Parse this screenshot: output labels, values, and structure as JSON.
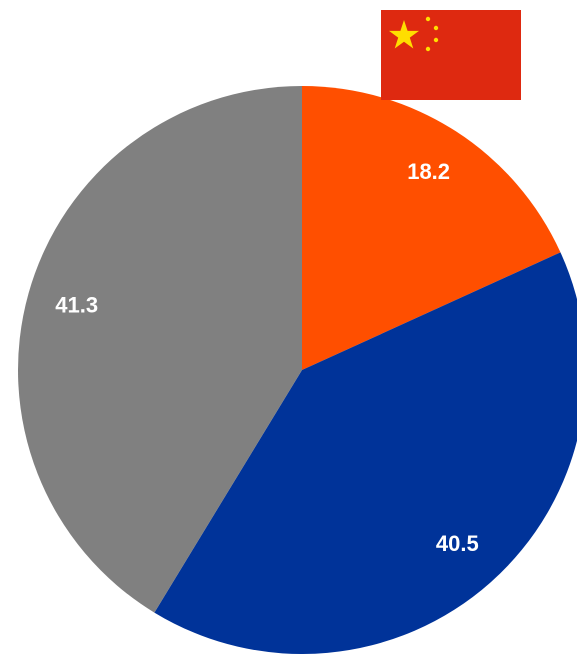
{
  "chart_data": {
    "type": "pie",
    "values": [
      18.2,
      40.5,
      41.3
    ],
    "colors": [
      "#ff4f00",
      "#003399",
      "#808080"
    ]
  }
}
